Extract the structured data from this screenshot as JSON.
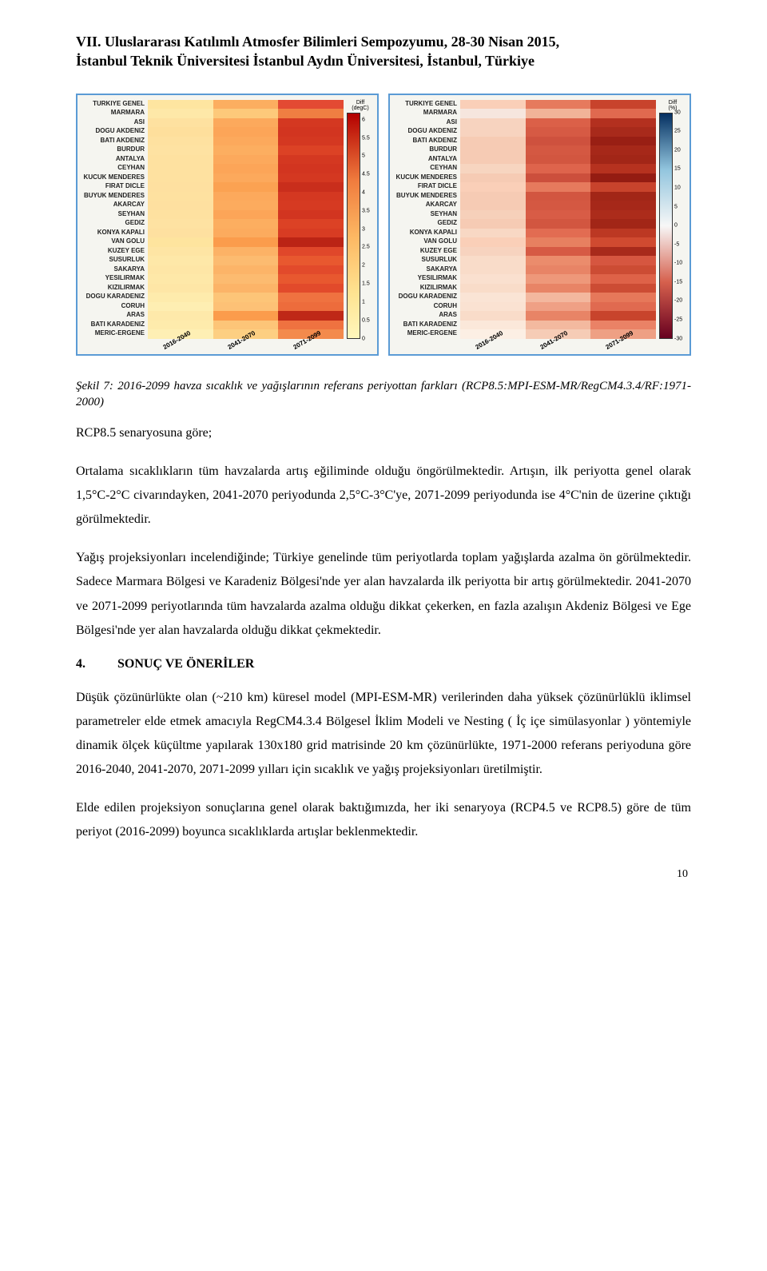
{
  "header": {
    "line1": "VII. Uluslararası Katılımlı Atmosfer Bilimleri Sempozyumu, 28-30 Nisan 2015,",
    "line2": "İstanbul Teknik Üniversitesi İstanbul Aydın Üniversitesi, İstanbul, Türkiye"
  },
  "basins": [
    "TURKIYE GENEL",
    "MARMARA",
    "ASI",
    "DOGU AKDENIZ",
    "BATI AKDENIZ",
    "BURDUR",
    "ANTALYA",
    "CEYHAN",
    "KUCUK MENDERES",
    "FIRAT DICLE",
    "BUYUK MENDERES",
    "AKARCAY",
    "SEYHAN",
    "GEDIZ",
    "KONYA KAPALI",
    "VAN GOLU",
    "KUZEY EGE",
    "SUSURLUK",
    "SAKARYA",
    "YESILIRMAK",
    "KIZILIRMAK",
    "DOGU KARADENIZ",
    "CORUH",
    "ARAS",
    "BATI KARADENIZ",
    "MERIC-ERGENE"
  ],
  "periods": [
    "2016-2040",
    "2041-2070",
    "2071-2099"
  ],
  "temp_chart": {
    "type": "heatmap",
    "legend_title": "Diff\n(degC)",
    "legend_min": 0,
    "legend_max": 6.2,
    "legend_ticks": [
      6,
      5.5,
      5,
      4.5,
      4,
      3.5,
      3,
      2.5,
      2,
      1.5,
      1,
      0.5,
      0
    ],
    "palette_low": "#fff7bc",
    "palette_mid1": "#fee391",
    "palette_mid2": "#fdb863",
    "palette_mid3": "#f07c3e",
    "palette_high": "#b30000",
    "cells": [
      [
        "#fee5a0",
        "#fcae60",
        "#e34a33"
      ],
      [
        "#fee8a8",
        "#fdc97a",
        "#ef7e42"
      ],
      [
        "#fee1a0",
        "#fca95c",
        "#d43821"
      ],
      [
        "#fedf9c",
        "#fca558",
        "#d23520"
      ],
      [
        "#fee1a0",
        "#fca95c",
        "#d43821"
      ],
      [
        "#fee2a2",
        "#fcae60",
        "#dc4225"
      ],
      [
        "#fee1a0",
        "#fca95c",
        "#d43821"
      ],
      [
        "#fee1a0",
        "#fca558",
        "#d23520"
      ],
      [
        "#fee1a0",
        "#fca95c",
        "#d43821"
      ],
      [
        "#fee0a0",
        "#fba252",
        "#c92e1c"
      ],
      [
        "#fee1a0",
        "#fca95c",
        "#d43821"
      ],
      [
        "#fee0a0",
        "#fcab5e",
        "#d63a22"
      ],
      [
        "#fee1a0",
        "#fca558",
        "#d23520"
      ],
      [
        "#fee2a2",
        "#fcae60",
        "#dc4225"
      ],
      [
        "#fee0a0",
        "#fcab5e",
        "#d83c23"
      ],
      [
        "#fee49e",
        "#fb9c4c",
        "#bb2415"
      ],
      [
        "#fee5a4",
        "#fcb266",
        "#e0472a"
      ],
      [
        "#fee8a8",
        "#fcbb70",
        "#e8582f"
      ],
      [
        "#fee6a6",
        "#fcb468",
        "#e24a2b"
      ],
      [
        "#fee8a8",
        "#fcbb70",
        "#e8582f"
      ],
      [
        "#fee6a6",
        "#fcb468",
        "#e24a2b"
      ],
      [
        "#feebac",
        "#fdc578",
        "#ef7240"
      ],
      [
        "#feeeb2",
        "#fdc176",
        "#ed6c3c"
      ],
      [
        "#fee9aa",
        "#fb9c4c",
        "#bf2817"
      ],
      [
        "#feebac",
        "#fdc578",
        "#ef7240"
      ],
      [
        "#feefb4",
        "#fdcf82",
        "#f38a4c"
      ]
    ]
  },
  "precip_chart": {
    "type": "heatmap",
    "legend_title": "Diff\n(%)",
    "legend_min": -30,
    "legend_max": 30,
    "legend_ticks": [
      30,
      25,
      20,
      15,
      10,
      5,
      0,
      -5,
      -10,
      -15,
      -20,
      -25,
      -30
    ],
    "palette_neg_high": "#67001f",
    "palette_neg_mid": "#d6604d",
    "palette_zero": "#f7f7f7",
    "palette_pos_mid": "#92c5de",
    "palette_pos_high": "#053061",
    "cells": [
      [
        "#facfb8",
        "#e67a5d",
        "#c8432c"
      ],
      [
        "#f6e6de",
        "#f1b398",
        "#e0694f"
      ],
      [
        "#f7d3bf",
        "#db6048",
        "#b3301f"
      ],
      [
        "#f7d3bf",
        "#d65a44",
        "#a82a1b"
      ],
      [
        "#f6cbb4",
        "#ce513e",
        "#991f14"
      ],
      [
        "#f6cbb4",
        "#d45842",
        "#a62819"
      ],
      [
        "#f6cbb4",
        "#d25640",
        "#a22617"
      ],
      [
        "#f7d5c0",
        "#de644c",
        "#b6321f"
      ],
      [
        "#f6cbb4",
        "#cc4f3c",
        "#941c12"
      ],
      [
        "#facfb8",
        "#e67a5d",
        "#c8432c"
      ],
      [
        "#f6cbb4",
        "#d25640",
        "#a22617"
      ],
      [
        "#f6cbb4",
        "#d45842",
        "#a62819"
      ],
      [
        "#f6d0ba",
        "#d85c46",
        "#ac2c1b"
      ],
      [
        "#f6cbb4",
        "#d25640",
        "#a22617"
      ],
      [
        "#f8d8c4",
        "#e26c52",
        "#bc3823"
      ],
      [
        "#facfb8",
        "#e78060",
        "#d04a30"
      ],
      [
        "#f7d3bf",
        "#d65a44",
        "#a82a1b"
      ],
      [
        "#f9dcc9",
        "#eb8c6c",
        "#d65640"
      ],
      [
        "#f9dcc9",
        "#e88466",
        "#cc4c34"
      ],
      [
        "#fae0cf",
        "#ee987a",
        "#de6248"
      ],
      [
        "#f9dcc9",
        "#e88466",
        "#cc4c34"
      ],
      [
        "#fae4d5",
        "#f3b79e",
        "#e6785a"
      ],
      [
        "#fae2d2",
        "#efa085",
        "#e06a50"
      ],
      [
        "#f9dcc9",
        "#e88466",
        "#c8442c"
      ],
      [
        "#fbe8da",
        "#f3b99f",
        "#ea8266"
      ],
      [
        "#fcefe4",
        "#f6ccb6",
        "#eea084"
      ]
    ]
  },
  "caption": "Şekil 7: 2016-2099 havza sıcaklık ve yağışlarının referans periyottan farkları (RCP8.5:MPI-ESM-MR/RegCM4.3.4/RF:1971-2000)",
  "para1": "RCP8.5 senaryosuna göre;",
  "para2": "Ortalama sıcaklıkların tüm havzalarda artış eğiliminde olduğu öngörülmektedir. Artışın, ilk periyotta genel olarak 1,5°C-2°C civarındayken, 2041-2070 periyodunda 2,5°C-3°C'ye, 2071-2099 periyodunda ise 4°C'nin de üzerine çıktığı görülmektedir.",
  "para3": "Yağış projeksiyonları incelendiğinde; Türkiye genelinde tüm periyotlarda toplam yağışlarda azalma ön görülmektedir. Sadece Marmara Bölgesi ve Karadeniz Bölgesi'nde yer alan havzalarda ilk periyotta bir artış görülmektedir. 2041-2070 ve 2071-2099 periyotlarında tüm havzalarda azalma olduğu dikkat çekerken, en fazla azalışın Akdeniz Bölgesi ve Ege Bölgesi'nde yer alan havzalarda olduğu dikkat çekmektedir.",
  "section": {
    "num": "4.",
    "title": "SONUÇ VE ÖNERİLER"
  },
  "para4": "Düşük çözünürlükte olan (~210 km) küresel model (MPI-ESM-MR) verilerinden daha yüksek çözünürlüklü iklimsel parametreler elde etmek amacıyla RegCM4.3.4 Bölgesel İklim Modeli ve Nesting ( İç içe simülasyonlar ) yöntemiyle dinamik ölçek küçültme yapılarak 130x180 grid matrisinde 20 km çözünürlükte, 1971-2000 referans periyoduna göre 2016-2040, 2041-2070, 2071-2099 yılları için sıcaklık ve yağış projeksiyonları üretilmiştir.",
  "para5": "Elde edilen projeksiyon sonuçlarına genel olarak baktığımızda, her iki senaryoya (RCP4.5 ve RCP8.5) göre de tüm periyot (2016-2099) boyunca sıcaklıklarda artışlar beklenmektedir.",
  "page_number": "10"
}
